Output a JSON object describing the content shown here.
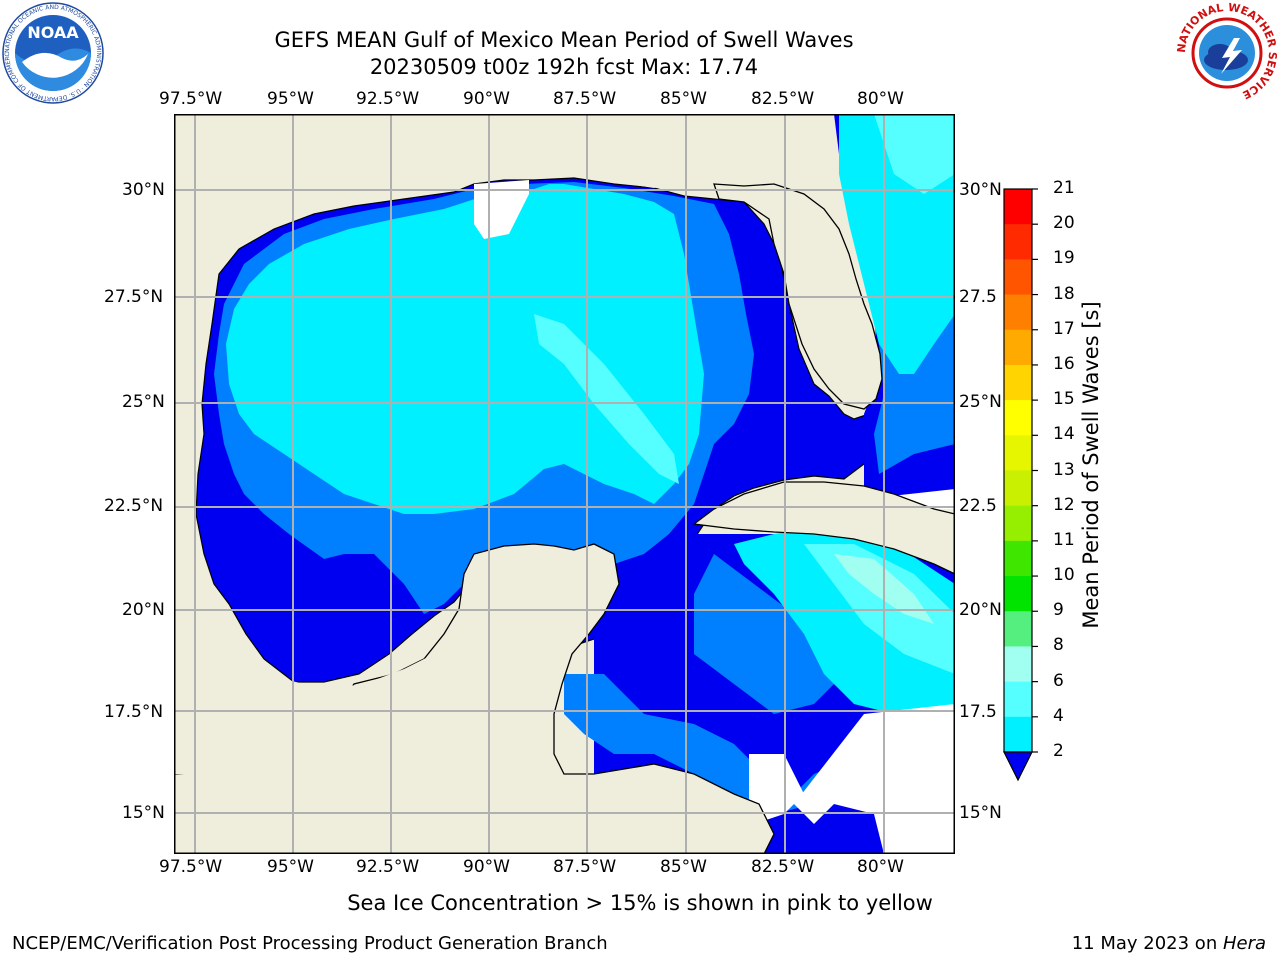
{
  "title": {
    "line1": "GEFS MEAN Gulf of Mexico Mean Period of Swell Waves",
    "line2": "20230509 t00z 192h fcst   Max: 17.74"
  },
  "map": {
    "lon_labels": [
      "97.5°W",
      "95°W",
      "92.5°W",
      "90°W",
      "87.5°W",
      "85°W",
      "82.5°W",
      "80°W"
    ],
    "lat_labels": [
      "30°N",
      "27.5°N",
      "25°N",
      "22.5°N",
      "20°N",
      "17.5°N",
      "15°N"
    ],
    "lat_labels_right": [
      "30°N",
      "27.5",
      "25°N",
      "22.5",
      "20°N",
      "17.5",
      "15°N"
    ],
    "colors": {
      "land": "#efeddc",
      "ocean_missing": "#ffffff",
      "grid": "#b0b0b0"
    }
  },
  "colorbar": {
    "label": "Mean Period of Swell Waves [s]",
    "ticks": [
      "21",
      "20",
      "19",
      "18",
      "17",
      "16",
      "15",
      "14",
      "13",
      "12",
      "11",
      "10",
      "9",
      "8",
      "6",
      "4",
      "2"
    ],
    "colors": [
      "#ff0000",
      "#ff2a00",
      "#ff5500",
      "#ff8000",
      "#ffaa00",
      "#ffd400",
      "#ffff00",
      "#e6f500",
      "#c8f000",
      "#96ee00",
      "#3ee600",
      "#00e400",
      "#55ef80",
      "#a0fff0",
      "#55ffff",
      "#00f0ff",
      "#0080ff",
      "#0000f0"
    ]
  },
  "logos": {
    "noaa_text": "NOAA",
    "noaa_ring": "NATIONAL OCEANIC AND ATMOSPHERIC ADMINISTRATION · U.S. DEPARTMENT OF COMMERCE",
    "nws_ring": "NATIONAL WEATHER SERVICE"
  },
  "subtitle": "Sea Ice Concentration > 15% is shown in pink to yellow",
  "footer": {
    "left": "NCEP/EMC/Verification Post Processing Product Generation Branch",
    "date": "11 May 2023 on ",
    "host": "Hera"
  }
}
